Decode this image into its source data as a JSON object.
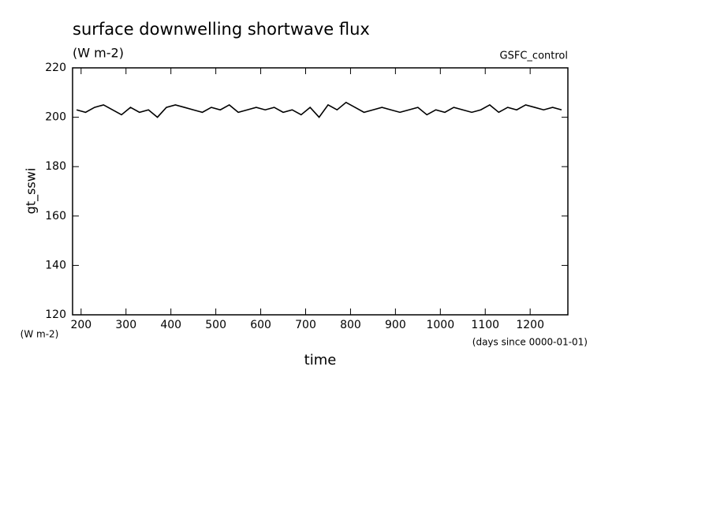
{
  "chart_data": {
    "type": "line",
    "title": "surface downwelling shortwave flux",
    "subtitle": "(W m-2)",
    "annotation": "GSFC_control",
    "y_label": "gt_sswi",
    "y_unit": "(W m-2)",
    "x_label": "time",
    "x_unit": "(days since 0000-01-01)",
    "x": [
      190,
      210,
      230,
      250,
      270,
      290,
      310,
      330,
      350,
      370,
      390,
      410,
      430,
      450,
      470,
      490,
      510,
      530,
      550,
      570,
      590,
      610,
      630,
      650,
      670,
      690,
      710,
      730,
      750,
      770,
      790,
      810,
      830,
      850,
      870,
      890,
      910,
      930,
      950,
      970,
      990,
      1010,
      1030,
      1050,
      1070,
      1090,
      1110,
      1130,
      1150,
      1170,
      1190,
      1210,
      1230,
      1250,
      1270
    ],
    "series": [
      {
        "name": "gt_sswi",
        "color": "#000000",
        "values": [
          203,
          202,
          204,
          205,
          203,
          201,
          204,
          202,
          203,
          200,
          204,
          205,
          204,
          203,
          202,
          204,
          203,
          205,
          202,
          203,
          204,
          203,
          204,
          202,
          203,
          201,
          204,
          200,
          205,
          203,
          206,
          204,
          202,
          203,
          204,
          203,
          202,
          203,
          204,
          201,
          203,
          202,
          204,
          203,
          202,
          203,
          205,
          202,
          204,
          203,
          205,
          204,
          203,
          204,
          203
        ]
      }
    ],
    "xlim": [
      181,
      1284
    ],
    "xticks": [
      200,
      300,
      400,
      500,
      600,
      700,
      800,
      900,
      1000,
      1100,
      1200
    ],
    "ylim": [
      120,
      220
    ],
    "yticks": [
      120,
      140,
      160,
      180,
      200,
      220
    ]
  }
}
